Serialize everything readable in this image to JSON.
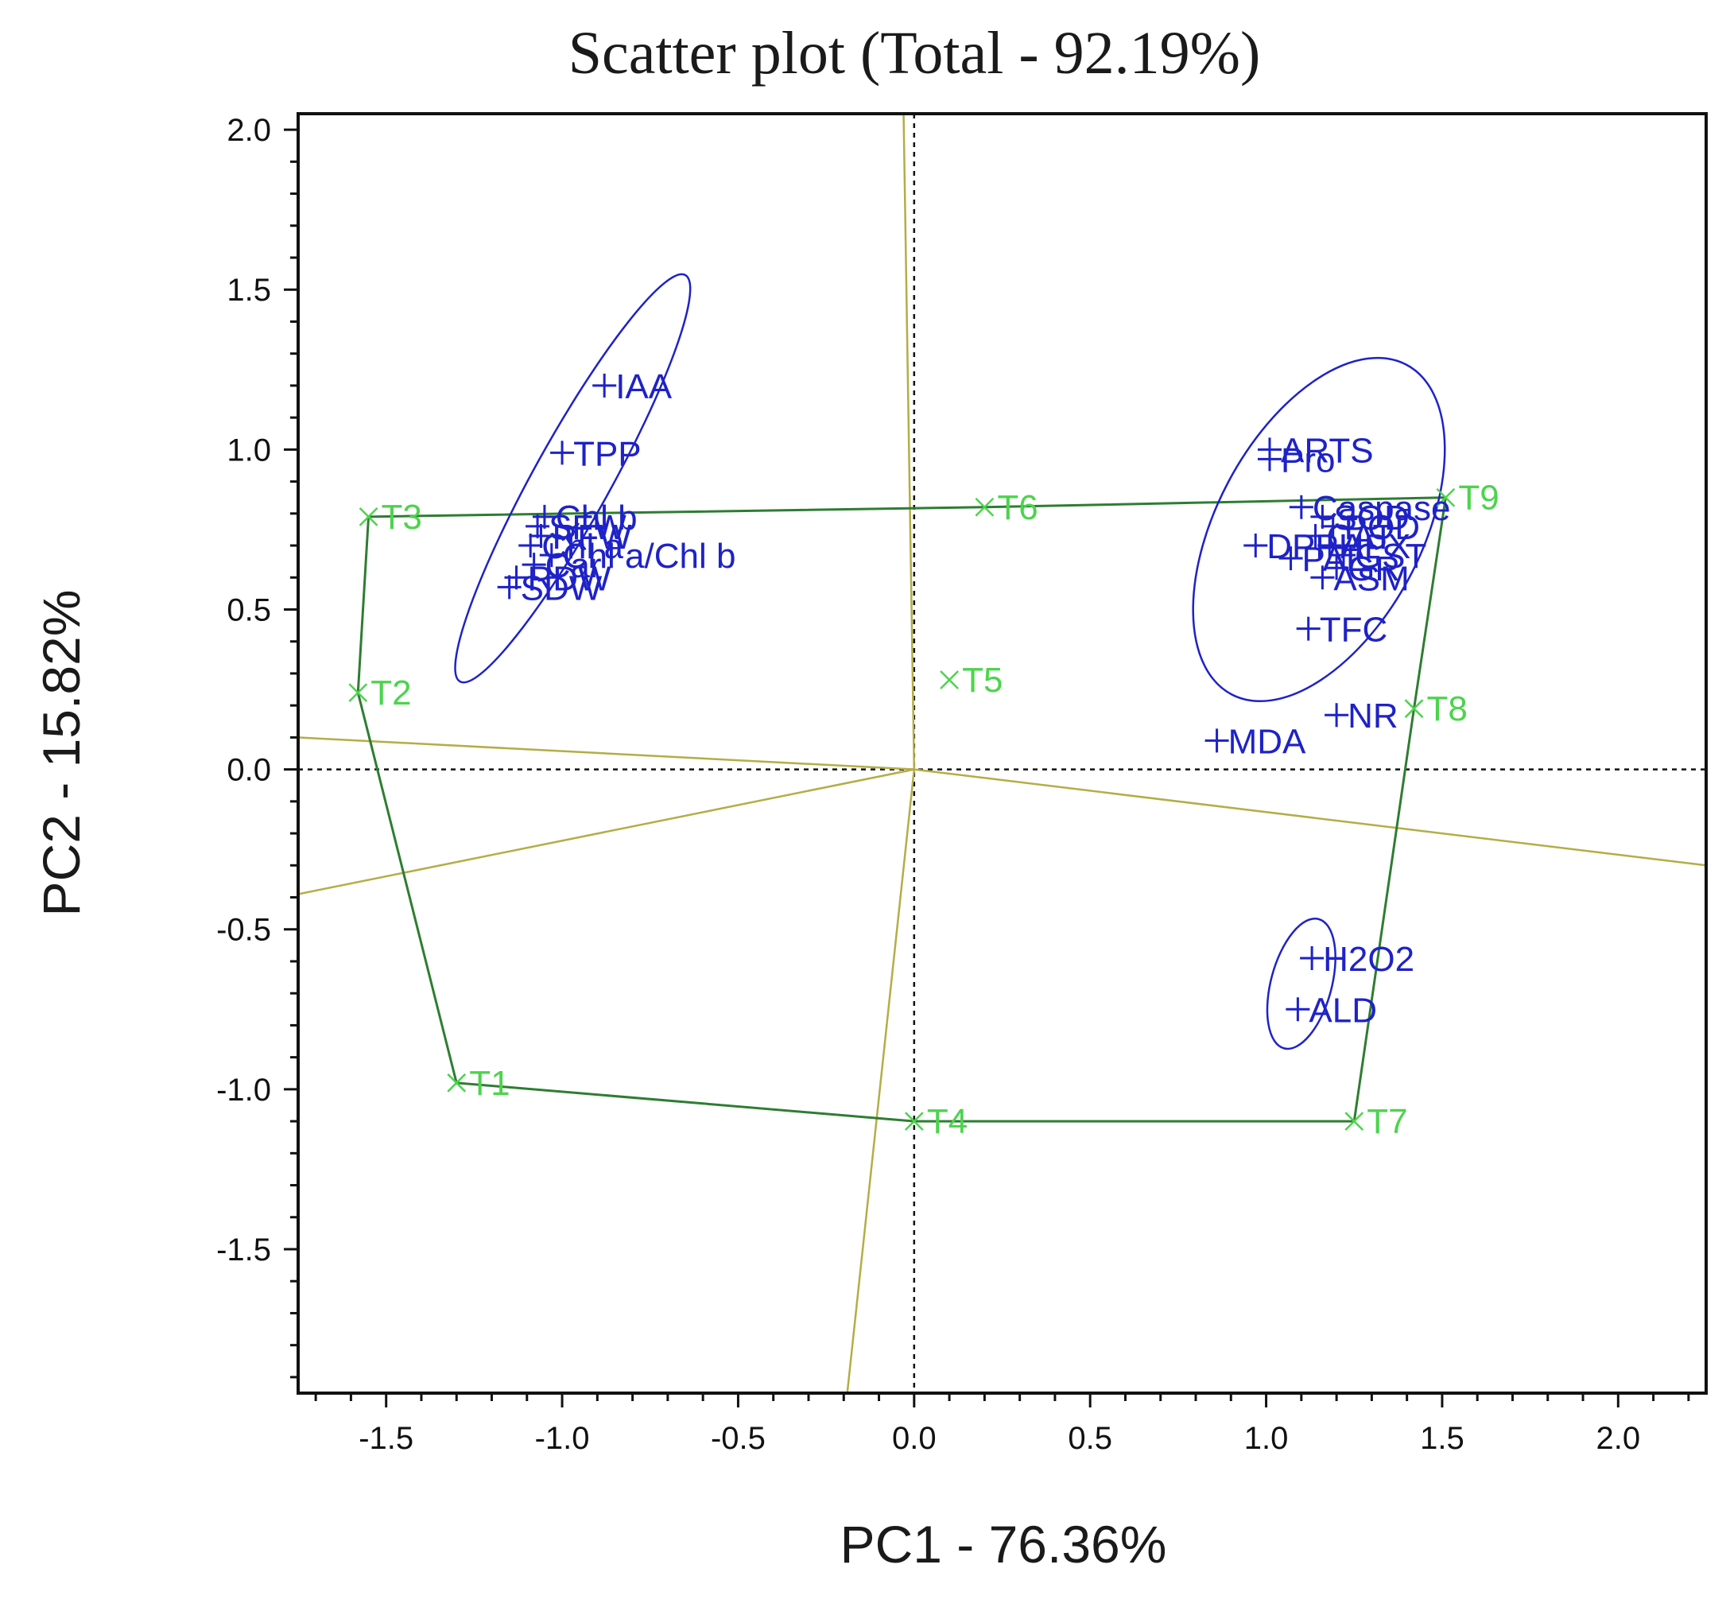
{
  "chart_data": {
    "type": "scatter",
    "title": "Scatter plot (Total - 92.19%)",
    "xlabel": "PC1 - 76.36%",
    "ylabel": "PC2 - 15.82%",
    "xlim": [
      -1.75,
      2.25
    ],
    "ylim": [
      -1.95,
      2.05
    ],
    "xticks": [
      "-1.5",
      "-1.0",
      "-0.5",
      "0.0",
      "0.5",
      "1.0",
      "1.5",
      "2.0"
    ],
    "yticks": [
      "2.0",
      "1.5",
      "1.0",
      "0.5",
      "0.0",
      "-0.5",
      "-1.0",
      "-1.5"
    ],
    "xtick_values": [
      -1.5,
      -1.0,
      -0.5,
      0.0,
      0.5,
      1.0,
      1.5,
      2.0
    ],
    "ytick_values": [
      2.0,
      1.5,
      1.0,
      0.5,
      0.0,
      -0.5,
      -1.0,
      -1.5
    ],
    "variables": {
      "name": "Variables",
      "color": "#1e22c8",
      "marker": "plus",
      "points": [
        {
          "label": "IAA",
          "x": -0.88,
          "y": 1.2
        },
        {
          "label": "TPP",
          "x": -1.0,
          "y": 0.99
        },
        {
          "label": "Chl b",
          "x": -1.05,
          "y": 0.79
        },
        {
          "label": "SFW",
          "x": -1.07,
          "y": 0.76
        },
        {
          "label": "RFW",
          "x": -1.06,
          "y": 0.73
        },
        {
          "label": "Chl a",
          "x": -1.09,
          "y": 0.7
        },
        {
          "label": "Chl a/Chl b",
          "x": -1.03,
          "y": 0.67
        },
        {
          "label": "Car",
          "x": -1.08,
          "y": 0.64
        },
        {
          "label": "RDW",
          "x": -1.13,
          "y": 0.6
        },
        {
          "label": "SDW",
          "x": -1.15,
          "y": 0.57
        },
        {
          "label": "ARTS",
          "x": 1.01,
          "y": 1.0
        },
        {
          "label": "Pro",
          "x": 1.01,
          "y": 0.97
        },
        {
          "label": "Caspase",
          "x": 1.1,
          "y": 0.82
        },
        {
          "label": "SOD",
          "x": 1.16,
          "y": 0.79
        },
        {
          "label": "POD",
          "x": 1.19,
          "y": 0.76
        },
        {
          "label": "CAT",
          "x": 1.14,
          "y": 0.73
        },
        {
          "label": "APX",
          "x": 1.18,
          "y": 0.7
        },
        {
          "label": "DPPH",
          "x": 0.97,
          "y": 0.7
        },
        {
          "label": "GST",
          "x": 1.22,
          "y": 0.67
        },
        {
          "label": "PAL",
          "x": 1.07,
          "y": 0.66
        },
        {
          "label": "GR",
          "x": 1.2,
          "y": 0.63
        },
        {
          "label": "ASM",
          "x": 1.16,
          "y": 0.6
        },
        {
          "label": "TFC",
          "x": 1.12,
          "y": 0.44
        },
        {
          "label": "NR",
          "x": 1.2,
          "y": 0.17
        },
        {
          "label": "MDA",
          "x": 0.86,
          "y": 0.09
        },
        {
          "label": "H2O2",
          "x": 1.13,
          "y": -0.59
        },
        {
          "label": "ALD",
          "x": 1.09,
          "y": -0.75
        }
      ]
    },
    "treatments": {
      "name": "Treatments",
      "color": "#4cd44c",
      "marker": "x",
      "points": [
        {
          "label": "T1",
          "x": -1.3,
          "y": -0.98
        },
        {
          "label": "T2",
          "x": -1.58,
          "y": 0.24
        },
        {
          "label": "T3",
          "x": -1.55,
          "y": 0.79
        },
        {
          "label": "T4",
          "x": 0.0,
          "y": -1.1
        },
        {
          "label": "T5",
          "x": 0.1,
          "y": 0.28
        },
        {
          "label": "T6",
          "x": 0.2,
          "y": 0.82
        },
        {
          "label": "T7",
          "x": 1.25,
          "y": -1.1
        },
        {
          "label": "T8",
          "x": 1.42,
          "y": 0.19
        },
        {
          "label": "T9",
          "x": 1.51,
          "y": 0.85
        }
      ],
      "hull_order": [
        "T3",
        "T6",
        "T9",
        "T8",
        "T7",
        "T4",
        "T1",
        "T2"
      ]
    },
    "ellipses": [
      {
        "cx": -0.97,
        "cy": 0.91,
        "rx": 0.66,
        "ry": 0.12,
        "angle_deg": 61,
        "color": "#1e22c8"
      },
      {
        "cx": 1.15,
        "cy": 0.75,
        "rx": 0.53,
        "ry": 0.32,
        "angle_deg": 62,
        "color": "#1e22c8"
      },
      {
        "cx": 1.1,
        "cy": -0.67,
        "rx": 0.19,
        "ry": 0.095,
        "angle_deg": 75,
        "color": "#1e22c8"
      }
    ],
    "reference_lines": {
      "color": "#b4ad46",
      "lines": [
        {
          "x1": -0.19,
          "y1": -1.95,
          "x2": 0.0,
          "y2": 0.0
        },
        {
          "x1": -0.03,
          "y1": 2.05,
          "x2": 0.0,
          "y2": 0.0
        },
        {
          "x1": -1.75,
          "y1": 0.1,
          "x2": 0.0,
          "y2": 0.0
        },
        {
          "x1": 2.25,
          "y1": -0.3,
          "x2": 0.0,
          "y2": 0.0
        },
        {
          "x1": -1.75,
          "y1": -0.39,
          "x2": 0.0,
          "y2": 0.0
        }
      ]
    },
    "zero_lines": true,
    "grid": false
  }
}
